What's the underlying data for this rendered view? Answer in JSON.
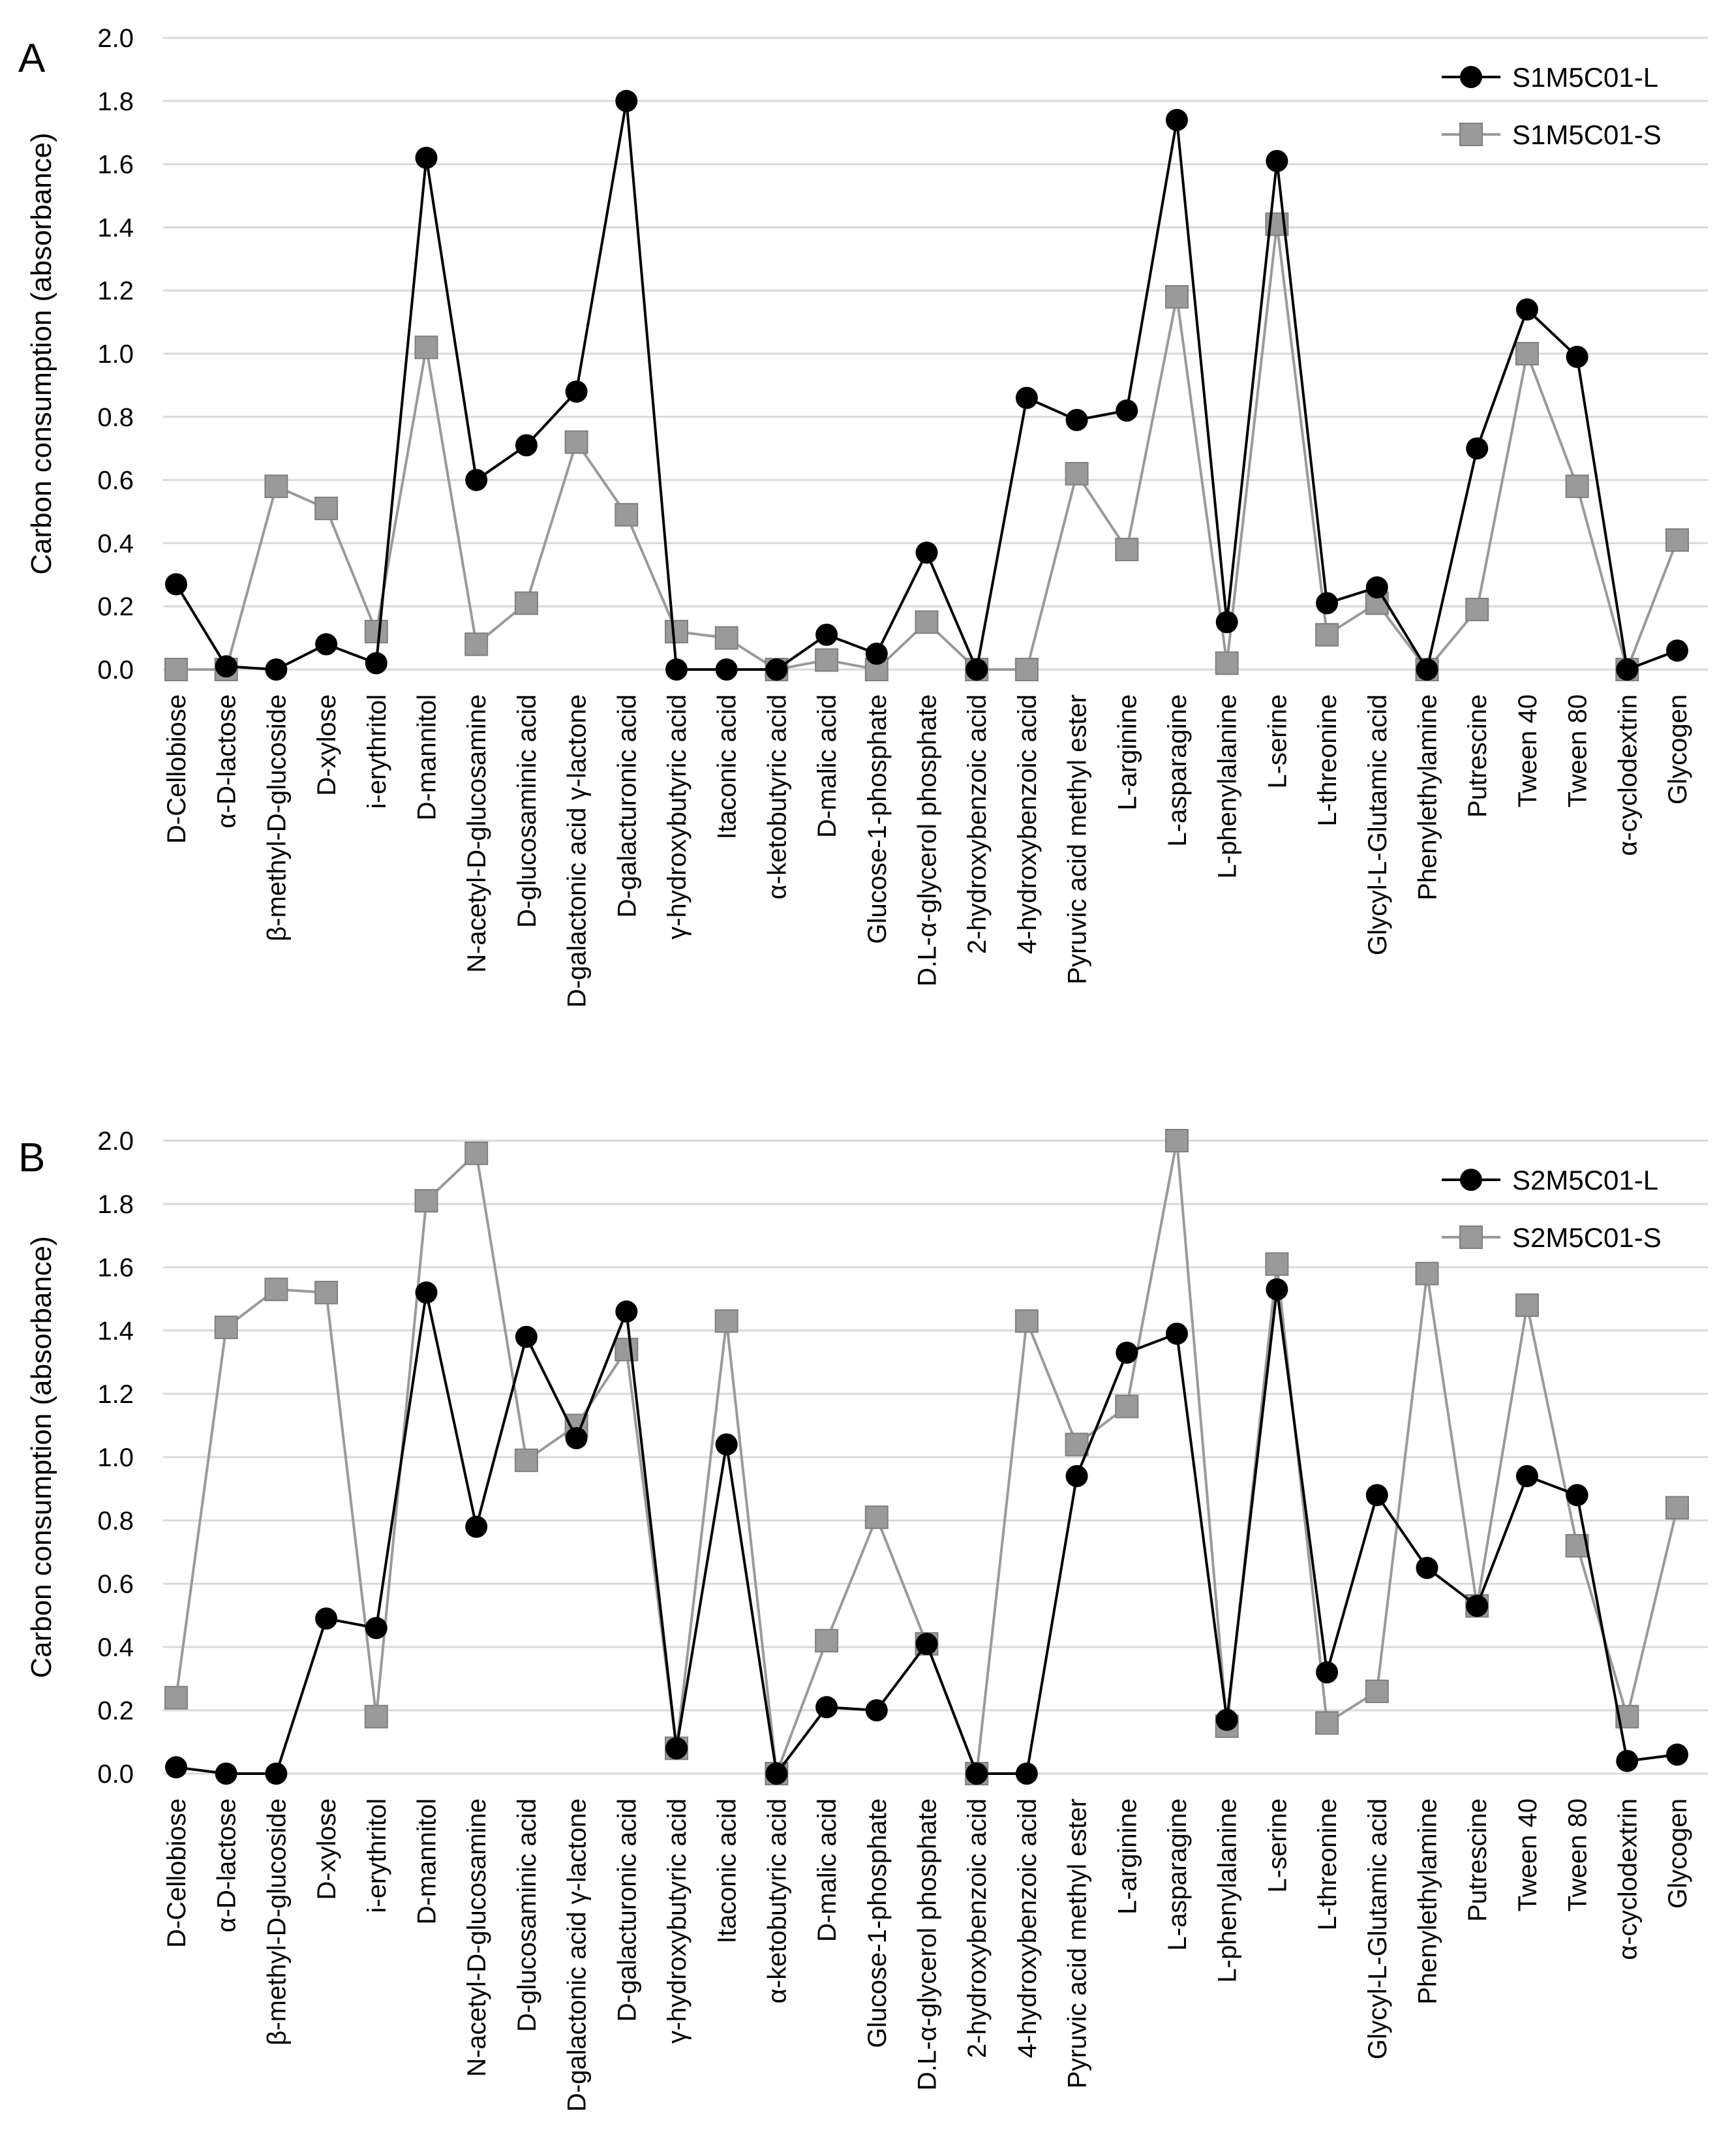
{
  "figure": {
    "colors": {
      "series_L": "#000000",
      "series_S": "#9a9a9a",
      "axis_text": "#000000",
      "gridline": "#d9d9d9"
    }
  },
  "chart_data": [
    {
      "type": "line",
      "panel_label": "A",
      "title": "",
      "xlabel": "",
      "ylabel": "Carbon consumption (absorbance)",
      "ylim": [
        0,
        2.0
      ],
      "yticks": [
        "0.0",
        "0.2",
        "0.4",
        "0.6",
        "0.8",
        "1.0",
        "1.2",
        "1.4",
        "1.6",
        "1.8",
        "2.0"
      ],
      "grid": true,
      "legend": "top-right",
      "categories": [
        "D-Cellobiose",
        "α-D-lactose",
        "β-methyl-D-glucoside",
        "D-xylose",
        "i-erythritol",
        "D-mannitol",
        "N-acetyl-D-glucosamine",
        "D-glucosaminic acid",
        "D-galactonic acid γ-lactone",
        "D-galacturonic acid",
        "γ-hydroxybutyric acid",
        "Itaconic acid",
        "α-ketobutyric acid",
        "D-malic acid",
        "Glucose-1-phosphate",
        "D.L-α-glycerol phosphate",
        "2-hydroxybenzoic acid",
        "4-hydroxybenzoic acid",
        "Pyruvic acid methyl ester",
        "L-arginine",
        "L-asparagine",
        "L-phenylalanine",
        "L-serine",
        "L-threonine",
        "Glycyl-L-Glutamic acid",
        "Phenylethylamine",
        "Putrescine",
        "Tween 40",
        "Tween 80",
        "α-cyclodextrin",
        "Glycogen"
      ],
      "series": [
        {
          "name": "S1M5C01-L",
          "marker": "circle",
          "color": "#000000",
          "values": [
            0.27,
            0.01,
            0.0,
            0.08,
            0.02,
            1.62,
            0.6,
            0.71,
            0.88,
            1.8,
            0.0,
            0.0,
            0.0,
            0.11,
            0.05,
            0.37,
            0.0,
            0.86,
            0.79,
            0.82,
            1.74,
            0.15,
            1.61,
            0.21,
            0.26,
            0.0,
            0.7,
            1.14,
            0.99,
            0.0,
            0.06
          ]
        },
        {
          "name": "S1M5C01-S",
          "marker": "square",
          "color": "#9a9a9a",
          "values": [
            0.0,
            0.0,
            0.58,
            0.51,
            0.12,
            1.02,
            0.08,
            0.21,
            0.72,
            0.49,
            0.12,
            0.1,
            0.0,
            0.03,
            0.0,
            0.15,
            0.0,
            0.0,
            0.62,
            0.38,
            1.18,
            0.02,
            1.41,
            0.11,
            0.21,
            0.0,
            0.19,
            1.0,
            0.58,
            0.0,
            0.41
          ]
        }
      ]
    },
    {
      "type": "line",
      "panel_label": "B",
      "title": "",
      "xlabel": "",
      "ylabel": "Carbon consumption (absorbance)",
      "ylim": [
        0,
        2.0
      ],
      "yticks": [
        "0.0",
        "0.2",
        "0.4",
        "0.6",
        "0.8",
        "1.0",
        "1.2",
        "1.4",
        "1.6",
        "1.8",
        "2.0"
      ],
      "grid": true,
      "legend": "top-right",
      "categories": [
        "D-Cellobiose",
        "α-D-lactose",
        "β-methyl-D-glucoside",
        "D-xylose",
        "i-erythritol",
        "D-mannitol",
        "N-acetyl-D-glucosamine",
        "D-glucosaminic acid",
        "D-galactonic acid γ-lactone",
        "D-galacturonic acid",
        "γ-hydroxybutyric acid",
        "Itaconic acid",
        "α-ketobutyric acid",
        "D-malic acid",
        "Glucose-1-phosphate",
        "D.L-α-glycerol phosphate",
        "2-hydroxybenzoic acid",
        "4-hydroxybenzoic acid",
        "Pyruvic acid methyl ester",
        "L-arginine",
        "L-asparagine",
        "L-phenylalanine",
        "L-serine",
        "L-threonine",
        "Glycyl-L-Glutamic acid",
        "Phenylethylamine",
        "Putrescine",
        "Tween 40",
        "Tween 80",
        "α-cyclodextrin",
        "Glycogen"
      ],
      "series": [
        {
          "name": "S2M5C01-L",
          "marker": "circle",
          "color": "#000000",
          "values": [
            0.02,
            0.0,
            0.0,
            0.49,
            0.46,
            1.52,
            0.78,
            1.38,
            1.06,
            1.46,
            0.08,
            1.04,
            0.0,
            0.21,
            0.2,
            0.41,
            0.0,
            0.0,
            0.94,
            1.33,
            1.39,
            0.17,
            1.53,
            0.32,
            0.88,
            0.65,
            0.53,
            0.94,
            0.88,
            0.04,
            0.06
          ]
        },
        {
          "name": "S2M5C01-S",
          "marker": "square",
          "color": "#9a9a9a",
          "values": [
            0.24,
            1.41,
            1.53,
            1.52,
            0.18,
            1.81,
            1.96,
            0.99,
            1.1,
            1.34,
            0.08,
            1.43,
            0.0,
            0.42,
            0.81,
            0.41,
            0.0,
            1.43,
            1.04,
            1.16,
            2.0,
            0.15,
            1.61,
            0.16,
            0.26,
            1.58,
            0.53,
            1.48,
            0.72,
            0.18,
            0.84
          ]
        }
      ]
    }
  ]
}
